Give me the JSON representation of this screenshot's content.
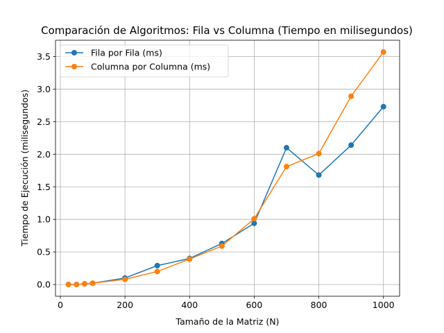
{
  "chart_data": {
    "type": "line",
    "title": "Comparación de Algoritmos: Fila vs Columna (Tiempo en milisegundos)",
    "xlabel": "Tamaño de la Matriz (N)",
    "ylabel": "Tiempo de Ejecución (milisegundos)",
    "xlim": [
      -15,
      1050
    ],
    "ylim": [
      -0.18,
      3.75
    ],
    "xticks": [
      0,
      200,
      400,
      600,
      800,
      1000
    ],
    "xtick_labels": [
      "0",
      "200",
      "400",
      "600",
      "800",
      "1000"
    ],
    "yticks": [
      0.0,
      0.5,
      1.0,
      1.5,
      2.0,
      2.5,
      3.0,
      3.5
    ],
    "ytick_labels": [
      "0.0",
      "0.5",
      "1.0",
      "1.5",
      "2.0",
      "2.5",
      "3.0",
      "3.5"
    ],
    "grid": true,
    "legend_position": "top-left",
    "x": [
      25,
      50,
      75,
      100,
      200,
      300,
      400,
      500,
      600,
      700,
      800,
      900,
      1000
    ],
    "series": [
      {
        "name": "Fila por Fila (ms)",
        "color": "#1f77b4",
        "values": [
          0.0,
          0.0,
          0.01,
          0.02,
          0.1,
          0.29,
          0.4,
          0.63,
          0.94,
          2.1,
          1.68,
          2.14,
          2.73
        ]
      },
      {
        "name": "Columna por Columna (ms)",
        "color": "#ff7f0e",
        "values": [
          0.0,
          0.0,
          0.01,
          0.02,
          0.08,
          0.2,
          0.39,
          0.59,
          1.01,
          1.81,
          2.01,
          2.89,
          3.57
        ]
      }
    ]
  }
}
